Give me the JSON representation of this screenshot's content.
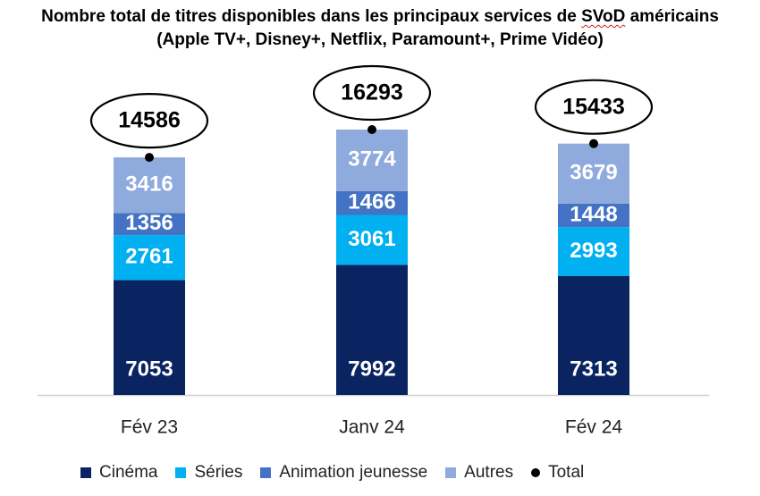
{
  "chart_data": {
    "type": "bar",
    "stacked": true,
    "title_line1_a": "Nombre total de titres disponibles dans les principaux services de ",
    "title_line1_b": "SVoD",
    "title_line1_c": " américains",
    "title_line2": "(Apple TV+, Disney+, Netflix, Paramount+, Prime Vidéo)",
    "categories": [
      "Fév 23",
      "Janv 24",
      "Fév 24"
    ],
    "series": [
      {
        "name": "Cinéma",
        "color": "#0a2461",
        "label_color": "#ffffff",
        "values": [
          7053,
          7992,
          7313
        ]
      },
      {
        "name": "Séries",
        "color": "#00b0f0",
        "label_color": "#ffffff",
        "values": [
          2761,
          3061,
          2993
        ]
      },
      {
        "name": "Animation jeunesse",
        "color": "#4472c4",
        "label_color": "#ffffff",
        "values": [
          1356,
          1466,
          1448
        ]
      },
      {
        "name": "Autres",
        "color": "#8faadc",
        "label_color": "#ffffff",
        "values": [
          3416,
          3774,
          3679
        ]
      }
    ],
    "total": {
      "name": "Total",
      "values": [
        14586,
        16293,
        15433
      ]
    },
    "ylim": [
      0,
      16293
    ],
    "grid": false,
    "legend_position": "bottom"
  }
}
